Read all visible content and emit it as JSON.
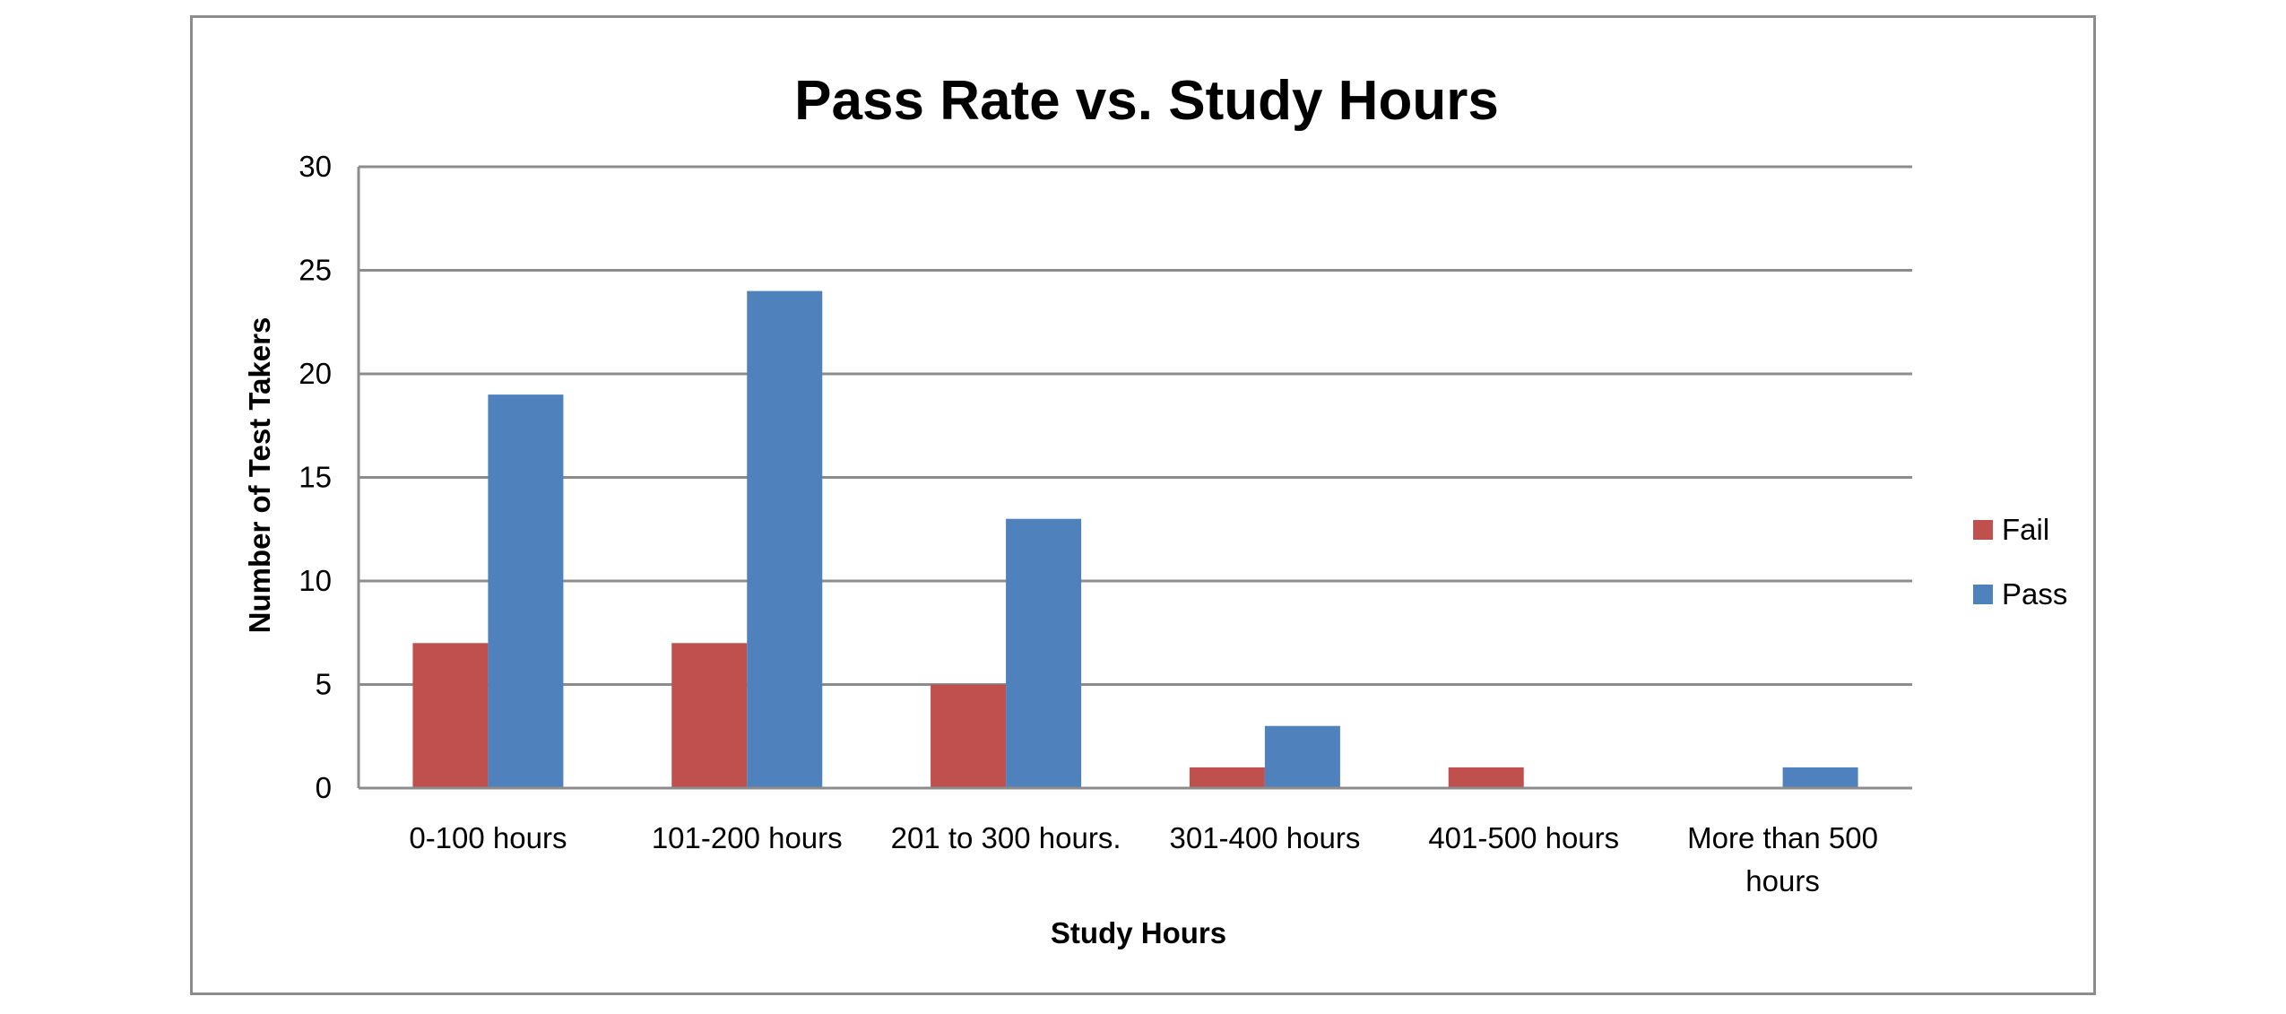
{
  "chart_data": {
    "type": "bar",
    "title": "Pass Rate vs. Study Hours",
    "xlabel": "Study Hours",
    "ylabel": "Number of Test Takers",
    "categories": [
      [
        "0-100 hours"
      ],
      [
        "101-200 hours"
      ],
      [
        "201 to 300 hours."
      ],
      [
        "301-400 hours"
      ],
      [
        "401-500 hours"
      ],
      [
        "More than 500",
        "hours"
      ]
    ],
    "series": [
      {
        "name": "Fail",
        "color": "#c0504d",
        "values": [
          7,
          7,
          5,
          1,
          1,
          0
        ]
      },
      {
        "name": "Pass",
        "color": "#4f81bd",
        "values": [
          19,
          24,
          13,
          3,
          0,
          1
        ]
      }
    ],
    "ylim": [
      0,
      30
    ],
    "yticks": [
      "0",
      "5",
      "10",
      "15",
      "20",
      "25",
      "30"
    ],
    "grid": true,
    "legend_position": "right"
  }
}
